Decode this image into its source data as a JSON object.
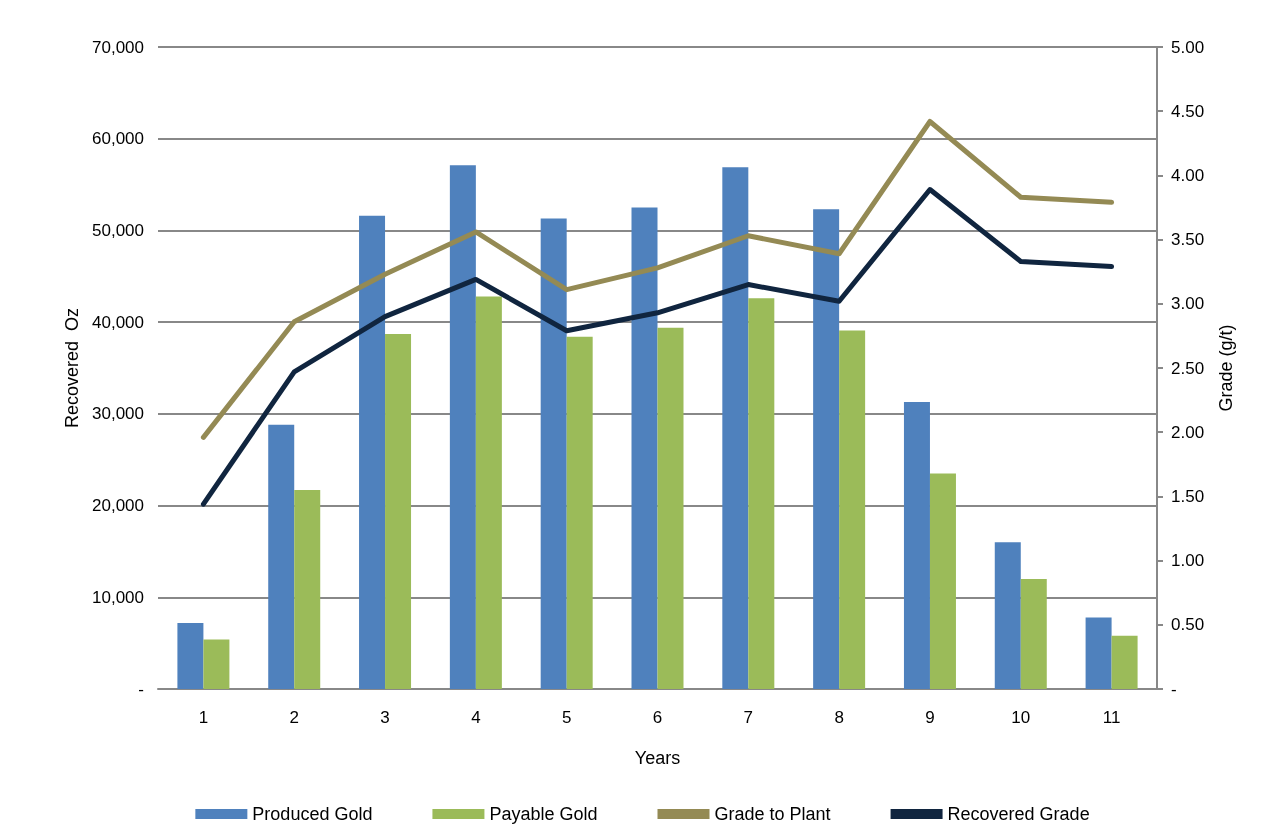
{
  "chart_data": {
    "type": "bar",
    "xlabel": "Years",
    "ylabel": "Recovered  Oz",
    "y2label": "Grade (g/t)",
    "categories": [
      "1",
      "2",
      "3",
      "4",
      "5",
      "6",
      "7",
      "8",
      "9",
      "10",
      "11"
    ],
    "series": [
      {
        "name": "Produced Gold",
        "color": "#4f81bd",
        "values": [
          7200,
          28800,
          51600,
          57100,
          51300,
          52500,
          56900,
          52300,
          31300,
          16000,
          7800
        ]
      },
      {
        "name": "Payable Gold",
        "color": "#9bbb59",
        "values": [
          5400,
          21700,
          38700,
          42800,
          38400,
          39400,
          42600,
          39100,
          23500,
          12000,
          5800
        ]
      },
      {
        "name": "Grade to Plant",
        "type": "line",
        "axis": "y2",
        "color": "#948a54",
        "values": [
          1.96,
          2.86,
          3.23,
          3.56,
          3.11,
          3.28,
          3.53,
          3.39,
          4.42,
          3.83,
          3.79
        ]
      },
      {
        "name": "Recovered Grade",
        "type": "line",
        "axis": "y2",
        "color": "#10253f",
        "values": [
          1.44,
          2.47,
          2.9,
          3.19,
          2.79,
          2.93,
          3.15,
          3.02,
          3.89,
          3.33,
          3.29
        ]
      }
    ],
    "ylim": [
      0,
      70000
    ],
    "yticks": [
      {
        "value": 0,
        "label": "-"
      },
      {
        "value": 10000,
        "label": "10,000"
      },
      {
        "value": 20000,
        "label": "20,000"
      },
      {
        "value": 30000,
        "label": "30,000"
      },
      {
        "value": 40000,
        "label": "40,000"
      },
      {
        "value": 50000,
        "label": "50,000"
      },
      {
        "value": 60000,
        "label": "60,000"
      },
      {
        "value": 70000,
        "label": "70,000"
      }
    ],
    "y2lim": [
      0,
      5
    ],
    "y2ticks": [
      {
        "value": 0,
        "label": "-"
      },
      {
        "value": 0.5,
        "label": "0.50"
      },
      {
        "value": 1,
        "label": "1.00"
      },
      {
        "value": 1.5,
        "label": "1.50"
      },
      {
        "value": 2,
        "label": "2.00"
      },
      {
        "value": 2.5,
        "label": "2.50"
      },
      {
        "value": 3,
        "label": "3.00"
      },
      {
        "value": 3.5,
        "label": "3.50"
      },
      {
        "value": 4,
        "label": "4.00"
      },
      {
        "value": 4.5,
        "label": "4.50"
      },
      {
        "value": 5,
        "label": "5.00"
      }
    ],
    "grid": "y",
    "legend": "bottom",
    "marker": "none",
    "line_style": "solid"
  }
}
